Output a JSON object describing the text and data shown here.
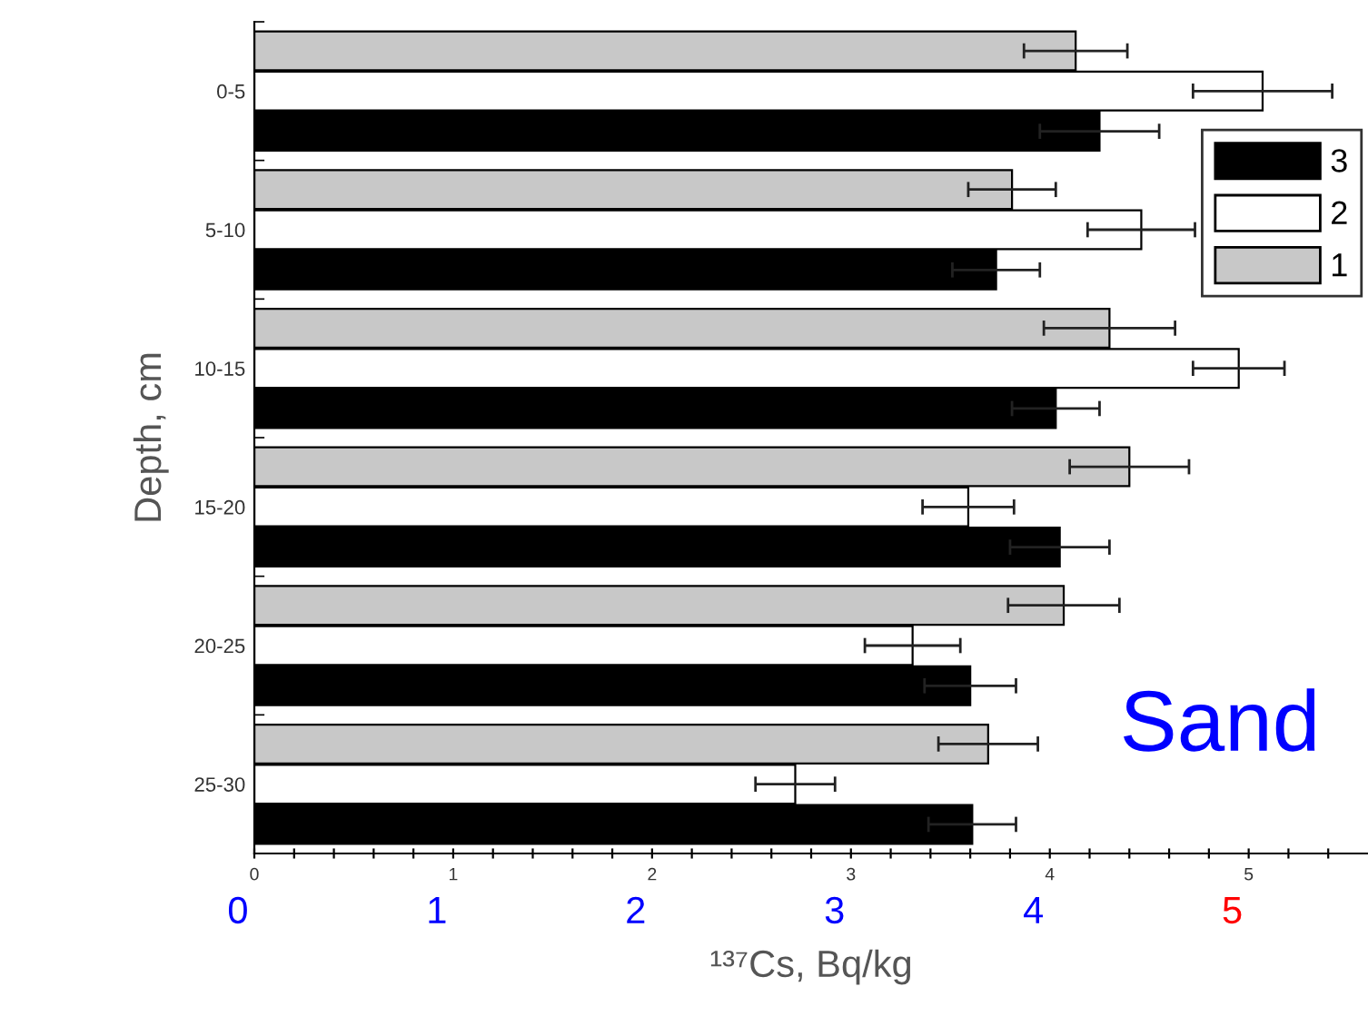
{
  "chart_data": {
    "type": "bar",
    "orientation": "horizontal",
    "xlabel": "¹³⁷Cs, Bq/kg",
    "ylabel": "Depth, cm",
    "categories": [
      "0-5",
      "5-10",
      "10-15",
      "15-20",
      "20-25",
      "25-30"
    ],
    "series": [
      {
        "name": "3",
        "color": "#000000",
        "values": [
          4.25,
          3.73,
          4.03,
          4.05,
          3.6,
          3.61
        ],
        "errors": [
          0.3,
          0.22,
          0.22,
          0.25,
          0.23,
          0.22
        ]
      },
      {
        "name": "2",
        "color": "#ffffff",
        "values": [
          5.07,
          4.46,
          4.95,
          3.59,
          3.31,
          2.72
        ],
        "errors": [
          0.35,
          0.27,
          0.23,
          0.23,
          0.24,
          0.2
        ]
      },
      {
        "name": "1",
        "color": "#c8c8c8",
        "values": [
          4.13,
          3.81,
          4.3,
          4.4,
          4.07,
          3.69
        ],
        "errors": [
          0.26,
          0.22,
          0.33,
          0.3,
          0.28,
          0.25
        ]
      }
    ],
    "xlim": [
      0,
      5.6
    ],
    "xticks": [
      0,
      {
        "value": 0.2,
        "label": null
      },
      {
        "value": 0.4,
        "label": null
      },
      {
        "value": 0.6,
        "label": null
      },
      {
        "value": 0.8,
        "label": null
      },
      1,
      {
        "value": 1.2,
        "label": null
      },
      {
        "value": 1.4,
        "label": null
      },
      {
        "value": 1.6,
        "label": null
      },
      {
        "value": 1.8,
        "label": null
      },
      2,
      {
        "value": 2.2,
        "label": null
      },
      {
        "value": 2.4,
        "label": null
      },
      {
        "value": 2.6,
        "label": null
      },
      {
        "value": 2.8,
        "label": null
      },
      3,
      {
        "value": 3.2,
        "label": null
      },
      {
        "value": 3.4,
        "label": null
      },
      {
        "value": 3.6,
        "label": null
      },
      {
        "value": 3.8,
        "label": null
      },
      4,
      {
        "value": 4.2,
        "label": null
      },
      {
        "value": 4.4,
        "label": null
      },
      {
        "value": 4.6,
        "label": null
      },
      {
        "value": 4.8,
        "label": null
      },
      5,
      {
        "value": 5.2,
        "label": null
      },
      {
        "value": 5.4,
        "label": null
      }
    ],
    "legend": "right",
    "grid": false,
    "annotations": [
      "Sand",
      "0",
      "1",
      "2",
      "3",
      "4",
      "5"
    ]
  }
}
